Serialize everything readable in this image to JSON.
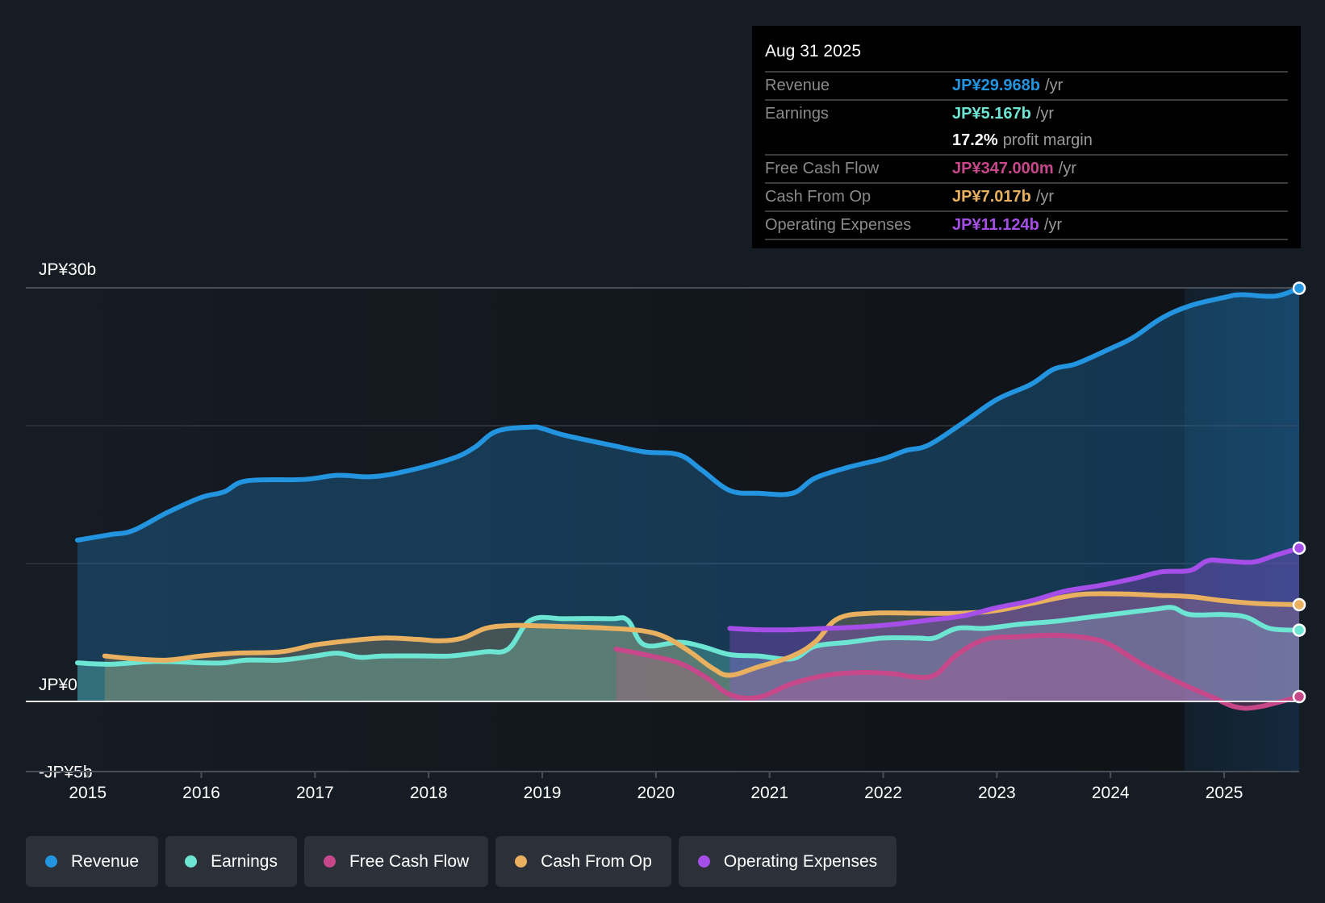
{
  "tooltip": {
    "date": "Aug 31 2025",
    "rows": [
      {
        "label": "Revenue",
        "value": "JP¥29.968b",
        "unit": "/yr",
        "color": "#2394df"
      },
      {
        "label": "Earnings",
        "value": "JP¥5.167b",
        "unit": "/yr",
        "color": "#6ce5d3"
      },
      {
        "label": "",
        "value": "17.2%",
        "unit": "profit margin",
        "color": "#ffffff"
      },
      {
        "label": "Free Cash Flow",
        "value": "JP¥347.000m",
        "unit": "/yr",
        "color": "#c6488a"
      },
      {
        "label": "Cash From Op",
        "value": "JP¥7.017b",
        "unit": "/yr",
        "color": "#e8b05f"
      },
      {
        "label": "Operating Expenses",
        "value": "JP¥11.124b",
        "unit": "/yr",
        "color": "#a54fe8"
      }
    ]
  },
  "legend": [
    {
      "label": "Revenue",
      "color": "#2394df"
    },
    {
      "label": "Earnings",
      "color": "#6ce5d3"
    },
    {
      "label": "Free Cash Flow",
      "color": "#c6488a"
    },
    {
      "label": "Cash From Op",
      "color": "#e8b05f"
    },
    {
      "label": "Operating Expenses",
      "color": "#a54fe8"
    }
  ],
  "chart_data": {
    "type": "area",
    "title": "",
    "xlabel": "",
    "ylabel": "",
    "currency": "JPY",
    "x_range": [
      2014.91,
      2025.66
    ],
    "ylim": [
      -5.2,
      30
    ],
    "highlight_start": 2024.65,
    "x_ticks": [
      "2015",
      "2016",
      "2017",
      "2018",
      "2019",
      "2020",
      "2021",
      "2022",
      "2023",
      "2024",
      "2025"
    ],
    "y_ticks": [
      {
        "value": 30,
        "label": "JP¥30b"
      },
      {
        "value": 20,
        "label": ""
      },
      {
        "value": 10,
        "label": ""
      },
      {
        "value": 0,
        "label": "JP¥0"
      },
      {
        "value": -5,
        "label": "-JP¥5b"
      }
    ],
    "grid": true,
    "legend_position": "bottom",
    "series": [
      {
        "name": "Revenue",
        "color": "#2394df",
        "x": [
          2014.91,
          2015.2,
          2015.4,
          2015.7,
          2016.0,
          2016.2,
          2016.4,
          2016.9,
          2017.2,
          2017.5,
          2017.8,
          2018.2,
          2018.4,
          2018.6,
          2018.9,
          2019.0,
          2019.2,
          2019.6,
          2019.9,
          2020.2,
          2020.4,
          2020.65,
          2020.9,
          2021.2,
          2021.4,
          2021.7,
          2022.0,
          2022.2,
          2022.4,
          2022.7,
          2023.0,
          2023.3,
          2023.5,
          2023.7,
          2024.0,
          2024.2,
          2024.45,
          2024.7,
          2025.0,
          2025.15,
          2025.45,
          2025.66
        ],
        "values": [
          11.7,
          12.1,
          12.4,
          13.7,
          14.8,
          15.2,
          16.0,
          16.1,
          16.4,
          16.3,
          16.7,
          17.6,
          18.4,
          19.6,
          19.9,
          19.8,
          19.3,
          18.6,
          18.1,
          17.9,
          16.8,
          15.3,
          15.1,
          15.1,
          16.2,
          17.0,
          17.6,
          18.2,
          18.6,
          20.2,
          21.9,
          23.0,
          24.1,
          24.5,
          25.6,
          26.4,
          27.8,
          28.7,
          29.3,
          29.5,
          29.4,
          29.97
        ]
      },
      {
        "name": "Earnings",
        "color": "#6ce5d3",
        "x": [
          2014.91,
          2015.2,
          2015.6,
          2016.0,
          2016.2,
          2016.4,
          2016.7,
          2017.0,
          2017.2,
          2017.4,
          2017.6,
          2018.0,
          2018.2,
          2018.5,
          2018.7,
          2018.9,
          2019.2,
          2019.6,
          2019.75,
          2019.9,
          2020.2,
          2020.4,
          2020.65,
          2020.9,
          2021.2,
          2021.4,
          2021.7,
          2022.0,
          2022.3,
          2022.45,
          2022.65,
          2022.9,
          2023.2,
          2023.5,
          2023.8,
          2024.1,
          2024.4,
          2024.55,
          2024.7,
          2025.0,
          2025.2,
          2025.4,
          2025.66
        ],
        "values": [
          2.8,
          2.7,
          2.9,
          2.8,
          2.8,
          3.0,
          3.0,
          3.3,
          3.5,
          3.2,
          3.3,
          3.3,
          3.3,
          3.6,
          3.8,
          5.9,
          6.0,
          6.0,
          5.9,
          4.1,
          4.3,
          4.0,
          3.4,
          3.3,
          3.1,
          4.0,
          4.3,
          4.6,
          4.6,
          4.6,
          5.3,
          5.3,
          5.6,
          5.8,
          6.1,
          6.4,
          6.7,
          6.8,
          6.3,
          6.3,
          6.1,
          5.3,
          5.17
        ]
      },
      {
        "name": "Free Cash Flow",
        "color": "#c6488a",
        "x": [
          2019.65,
          2019.9,
          2020.2,
          2020.45,
          2020.65,
          2020.9,
          2021.2,
          2021.5,
          2021.8,
          2022.1,
          2022.25,
          2022.45,
          2022.65,
          2022.9,
          2023.2,
          2023.5,
          2023.8,
          2024.0,
          2024.3,
          2024.65,
          2024.9,
          2025.1,
          2025.3,
          2025.66
        ],
        "values": [
          3.8,
          3.4,
          2.8,
          1.7,
          0.5,
          0.3,
          1.3,
          1.9,
          2.1,
          2.0,
          1.8,
          1.9,
          3.4,
          4.5,
          4.7,
          4.8,
          4.6,
          4.1,
          2.6,
          1.2,
          0.3,
          -0.4,
          -0.4,
          0.35
        ]
      },
      {
        "name": "Cash From Op",
        "color": "#e8b05f",
        "x": [
          2015.15,
          2015.4,
          2015.7,
          2016.0,
          2016.3,
          2016.7,
          2017.0,
          2017.3,
          2017.6,
          2017.9,
          2018.1,
          2018.3,
          2018.5,
          2018.7,
          2018.9,
          2019.3,
          2019.6,
          2019.9,
          2020.1,
          2020.3,
          2020.5,
          2020.65,
          2020.9,
          2021.2,
          2021.4,
          2021.6,
          2021.9,
          2022.3,
          2022.7,
          2023.0,
          2023.3,
          2023.6,
          2023.8,
          2024.1,
          2024.4,
          2024.7,
          2025.0,
          2025.3,
          2025.66
        ],
        "values": [
          3.3,
          3.1,
          3.0,
          3.3,
          3.5,
          3.6,
          4.1,
          4.4,
          4.6,
          4.5,
          4.4,
          4.6,
          5.3,
          5.5,
          5.5,
          5.4,
          5.3,
          5.1,
          4.6,
          3.6,
          2.4,
          1.9,
          2.5,
          3.3,
          4.3,
          6.0,
          6.4,
          6.4,
          6.4,
          6.6,
          7.1,
          7.6,
          7.8,
          7.8,
          7.7,
          7.6,
          7.3,
          7.1,
          7.02
        ]
      },
      {
        "name": "Operating Expenses",
        "color": "#a54fe8",
        "x": [
          2020.65,
          2020.9,
          2021.2,
          2021.5,
          2021.8,
          2022.1,
          2022.4,
          2022.7,
          2023.0,
          2023.3,
          2023.6,
          2023.9,
          2024.2,
          2024.45,
          2024.7,
          2024.85,
          2025.0,
          2025.25,
          2025.45,
          2025.66
        ],
        "values": [
          5.3,
          5.2,
          5.2,
          5.3,
          5.4,
          5.6,
          5.9,
          6.2,
          6.8,
          7.3,
          8.0,
          8.4,
          8.9,
          9.4,
          9.5,
          10.2,
          10.2,
          10.1,
          10.6,
          11.12
        ]
      }
    ]
  }
}
